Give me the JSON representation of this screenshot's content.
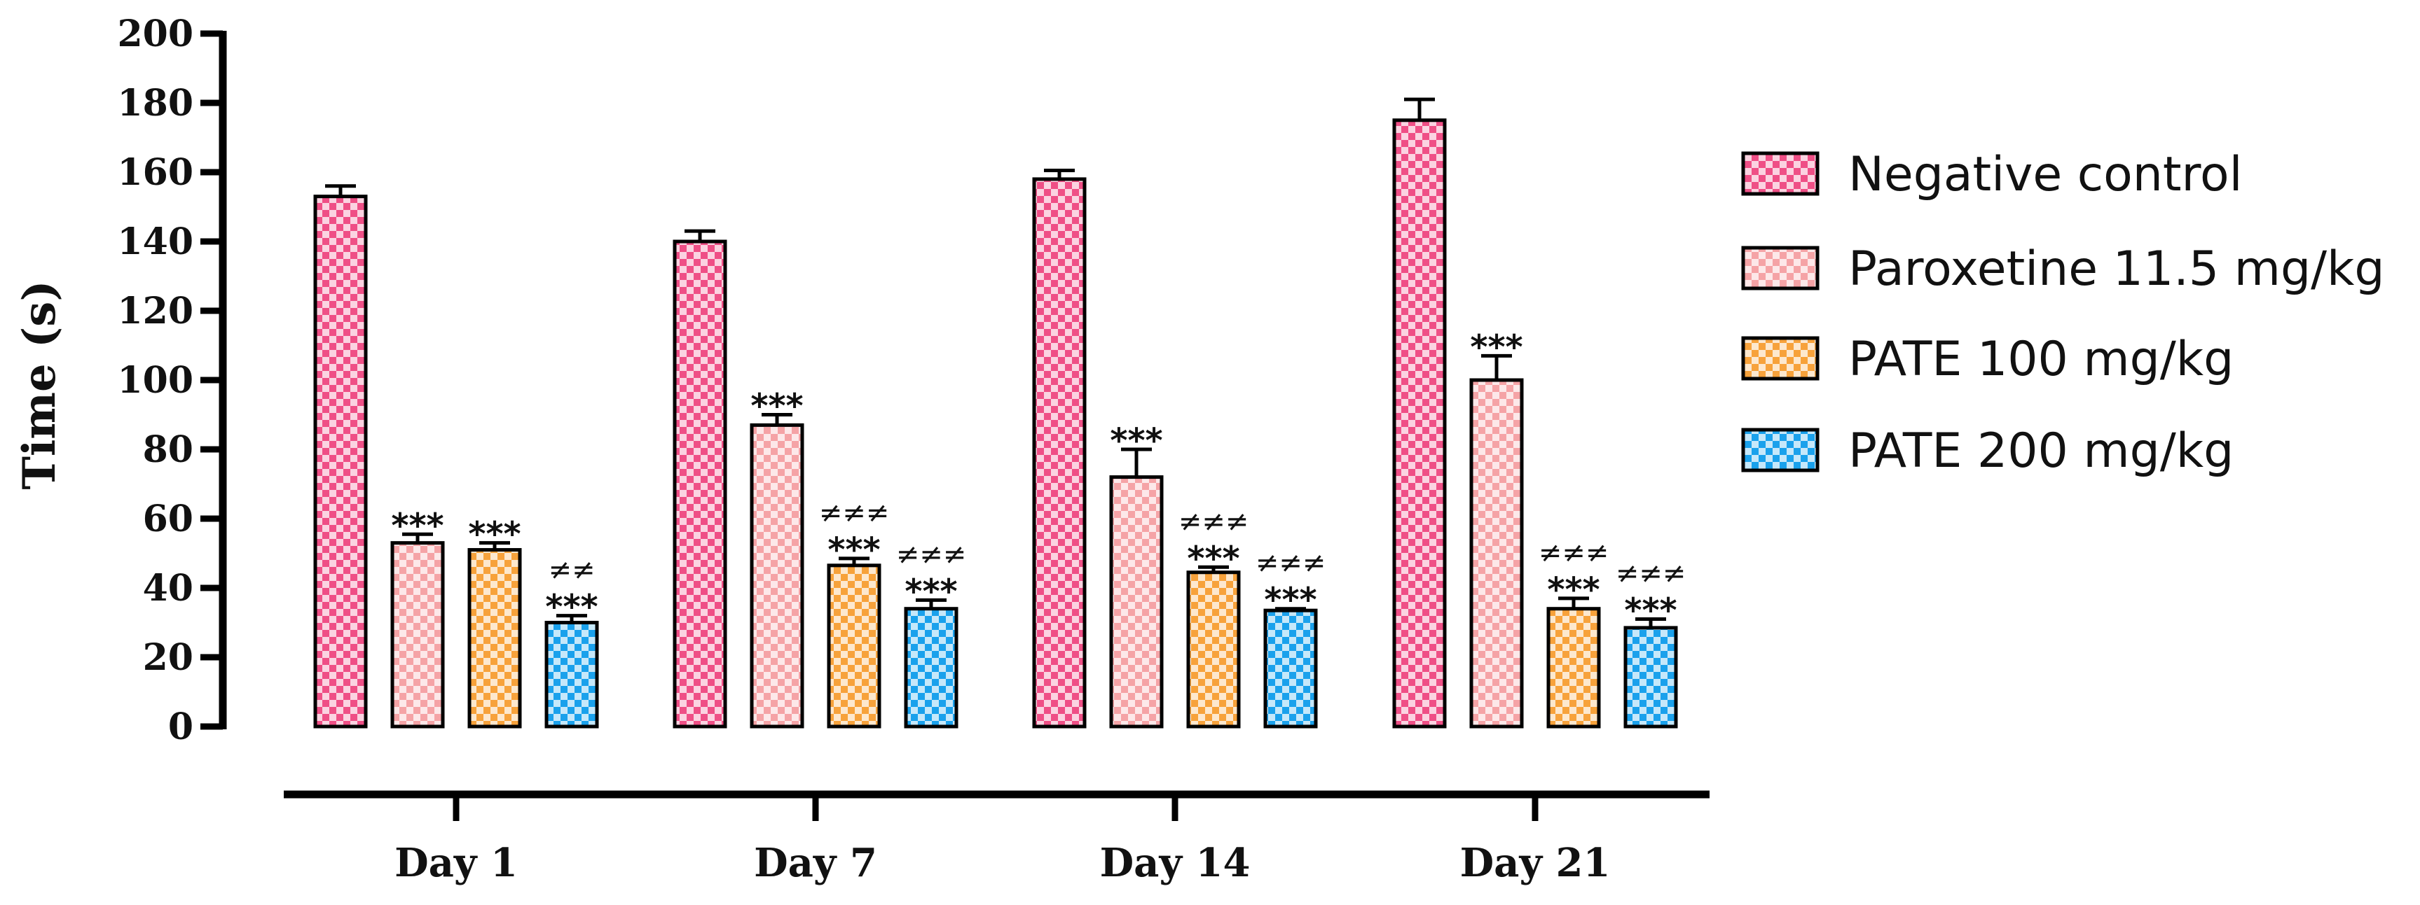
{
  "chart_data": {
    "type": "bar",
    "title": "",
    "xlabel": "",
    "ylabel": "Time (s)",
    "ylim": [
      0,
      200
    ],
    "yticks": [
      0,
      20,
      40,
      60,
      80,
      100,
      120,
      140,
      160,
      180,
      200
    ],
    "categories": [
      "Day 1",
      "Day 7",
      "Day 14",
      "Day 21"
    ],
    "legend_position": "right",
    "series": [
      {
        "name": "Negative control",
        "color": "#ef4f86",
        "pattern": "checker",
        "values": [
          153,
          140,
          158,
          175
        ],
        "errors": [
          3,
          3,
          2.5,
          6
        ],
        "sig_star": [
          "",
          "",
          "",
          ""
        ],
        "sig_hash": [
          "",
          "",
          "",
          ""
        ]
      },
      {
        "name": "Paroxetine 11.5 mg/kg",
        "color": "#f5a3a6",
        "pattern": "checker",
        "values": [
          53,
          87,
          72,
          100
        ],
        "errors": [
          2.5,
          3,
          8,
          7
        ],
        "sig_star": [
          "***",
          "***",
          "***",
          "***"
        ],
        "sig_hash": [
          "",
          "",
          "",
          ""
        ]
      },
      {
        "name": "PATE 100 mg/kg",
        "color": "#f7a23b",
        "pattern": "checker",
        "values": [
          51,
          46.5,
          44.5,
          34
        ],
        "errors": [
          2,
          2,
          1.5,
          3
        ],
        "sig_star": [
          "***",
          "***",
          "***",
          "***"
        ],
        "sig_hash": [
          "",
          "≠≠≠",
          "≠≠≠",
          "≠≠≠"
        ]
      },
      {
        "name": "PATE 200 mg/kg",
        "color": "#1aa1ec",
        "pattern": "checker",
        "values": [
          30,
          34,
          33.5,
          28.5
        ],
        "errors": [
          2,
          2.5,
          0.5,
          2.5
        ],
        "sig_star": [
          "***",
          "***",
          "***",
          "***"
        ],
        "sig_hash": [
          "≠≠",
          "≠≠≠",
          "≠≠≠",
          "≠≠≠"
        ]
      }
    ]
  }
}
